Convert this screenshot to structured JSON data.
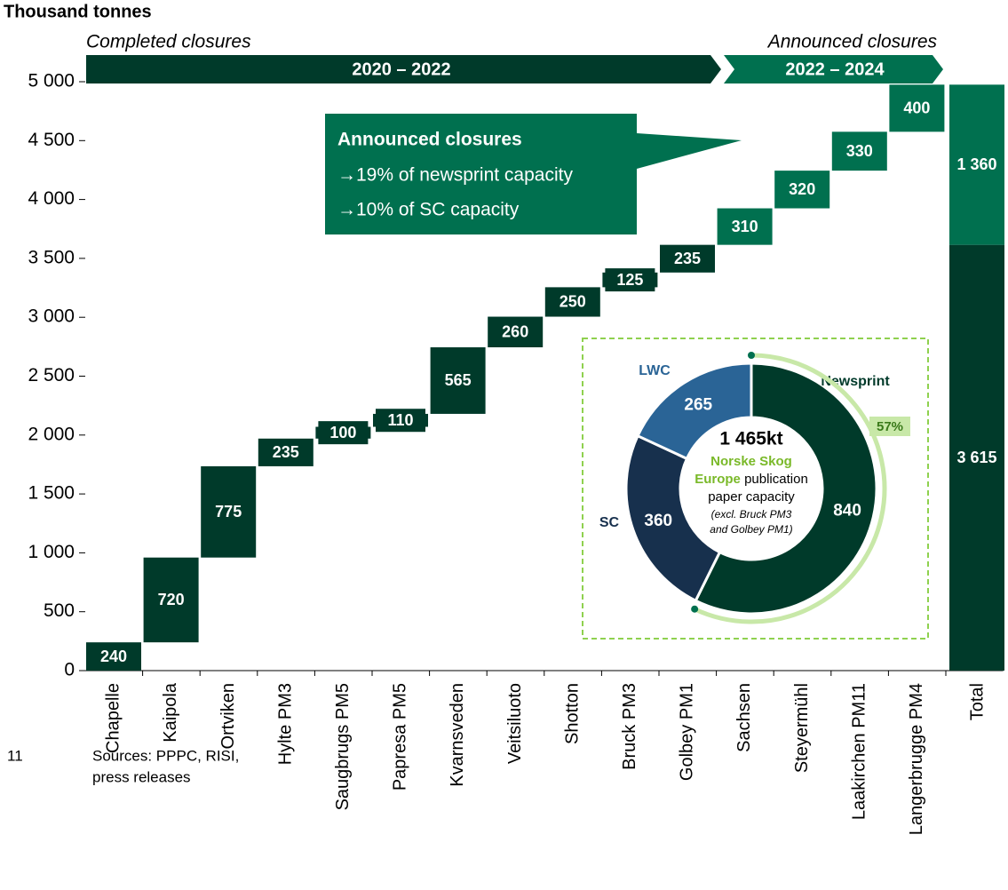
{
  "unit_label": "Thousand tonnes",
  "page_number": "11",
  "sources": [
    "Sources: PPPC, RISI,",
    "press releases"
  ],
  "chart_data": [
    {
      "type": "waterfall",
      "categories": [
        "Chapelle",
        "Kaipola",
        "Ortviken",
        "Hylte PM3",
        "Saugbrugs PM5",
        "Papresa PM5",
        "Kvarnsveden",
        "Veitsiluoto",
        "Shotton",
        "Bruck PM3",
        "Golbey PM1",
        "Sachsen",
        "Steyermühl",
        "Laakirchen PM11",
        "Langerbrugge PM4"
      ],
      "values": [
        240,
        720,
        775,
        235,
        100,
        110,
        565,
        260,
        250,
        125,
        235,
        310,
        320,
        330,
        400
      ],
      "colors": [
        "#003a2a",
        "#003a2a",
        "#003a2a",
        "#003a2a",
        "#003a2a",
        "#003a2a",
        "#003a2a",
        "#003a2a",
        "#003a2a",
        "#003a2a",
        "#003a2a",
        "#00704f",
        "#00704f",
        "#00704f",
        "#00704f"
      ],
      "total_label": "Total",
      "total_values": [
        3615,
        1360
      ],
      "total_value_labels": [
        "3 615",
        "1 360"
      ],
      "total_colors": [
        "#003a2a",
        "#00704f"
      ],
      "ylim": [
        0,
        5000
      ],
      "yticks": [
        0,
        500,
        {
          "value": 1000,
          "label": "1 000"
        },
        {
          "value": 1500,
          "label": "1 500"
        },
        {
          "value": 2000,
          "label": "2 000"
        },
        {
          "value": 2500,
          "label": "2 500"
        },
        {
          "value": 3000,
          "label": "3 000"
        },
        {
          "value": 3500,
          "label": "3 500"
        },
        {
          "value": 4000,
          "label": "4 000"
        },
        {
          "value": 4500,
          "label": "4 500"
        },
        {
          "value": 5000,
          "label": "5 000"
        }
      ],
      "phases": [
        {
          "caption": "Completed closures",
          "label": "2020 – 2022",
          "color": "#003a2a"
        },
        {
          "caption": "Announced closures",
          "label": "2022 – 2024",
          "color": "#00704f"
        }
      ],
      "annotation": {
        "title": "Announced closures",
        "lines": [
          "→19% of newsprint capacity",
          "→10% of SC capacity"
        ]
      }
    },
    {
      "type": "donut",
      "categories": [
        "Newsprint",
        "SC",
        "LWC"
      ],
      "values": [
        840,
        360,
        265
      ],
      "colors": [
        "#003a2a",
        "#17304d",
        "#2a6496"
      ],
      "label_colors": [
        "#003a2a",
        "#17304d",
        "#2a6496"
      ],
      "total": 1465,
      "total_label": "1 465kt",
      "brand_lines": [
        "Norske Skog",
        "Europe"
      ],
      "caption_lines": [
        "publication",
        "paper capacity"
      ],
      "note_lines": [
        "(excl. Bruck PM3",
        "and Golbey PM1)"
      ],
      "highlight": {
        "value": 57,
        "label": "57%"
      }
    }
  ]
}
